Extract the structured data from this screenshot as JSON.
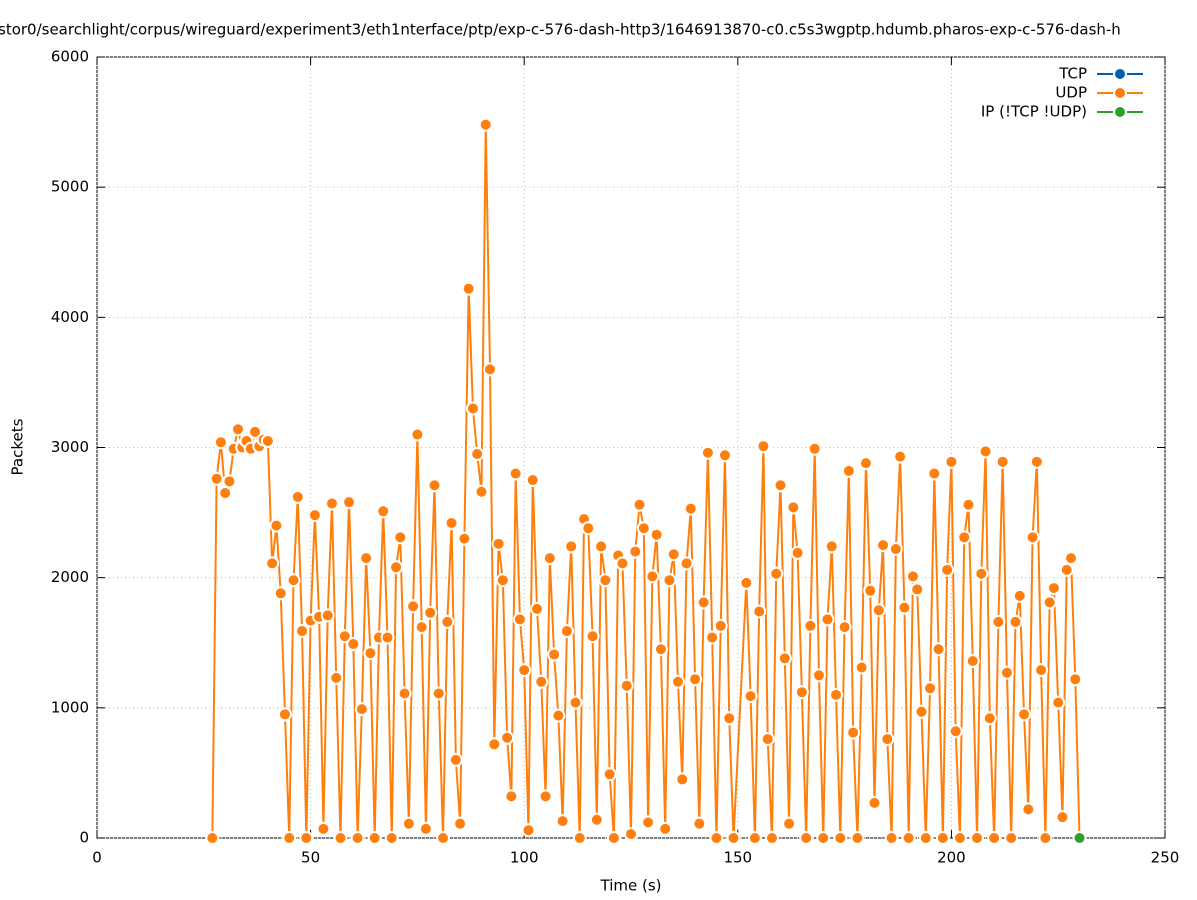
{
  "chart_data": {
    "type": "line",
    "title": "stor0/searchlight/corpus/wireguard/experiment3/eth1nterface/ptp/exp-c-576-dash-http3/1646913870-c0.c5s3wgptp.hdumb.pharos-exp-c-576-dash-h",
    "x_label": "Time (s)",
    "y_label": "Packets",
    "xlim": [
      0,
      250
    ],
    "xticks": [
      0,
      50,
      100,
      150,
      200,
      250
    ],
    "ylim": [
      0,
      6000
    ],
    "yticks": [
      0,
      1000,
      2000,
      3000,
      4000,
      5000,
      6000
    ],
    "grid": true,
    "legend": "top-right",
    "series": [
      {
        "name": "TCP",
        "color": "#0060ad",
        "x": [],
        "values": []
      },
      {
        "name": "UDP",
        "color": "#ff7f0e",
        "x": [
          27,
          28,
          29,
          30,
          31,
          32,
          33,
          34,
          35,
          36,
          37,
          38,
          39,
          40,
          41,
          42,
          43,
          44,
          45,
          46,
          47,
          48,
          49,
          50,
          51,
          52,
          53,
          54,
          55,
          56,
          57,
          58,
          59,
          60,
          61,
          62,
          63,
          64,
          65,
          66,
          67,
          68,
          69,
          70,
          71,
          72,
          73,
          74,
          75,
          76,
          77,
          78,
          79,
          80,
          81,
          82,
          83,
          84,
          85,
          86,
          87,
          88,
          89,
          90,
          91,
          92,
          93,
          94,
          95,
          96,
          97,
          98,
          99,
          100,
          101,
          102,
          103,
          104,
          105,
          106,
          107,
          108,
          109,
          110,
          111,
          112,
          113,
          114,
          115,
          116,
          117,
          118,
          119,
          120,
          121,
          122,
          123,
          124,
          125,
          126,
          127,
          128,
          129,
          130,
          131,
          132,
          133,
          134,
          135,
          136,
          137,
          138,
          139,
          140,
          141,
          142,
          143,
          144,
          145,
          146,
          147,
          148,
          149,
          152,
          153,
          154,
          155,
          156,
          157,
          158,
          159,
          160,
          161,
          162,
          163,
          164,
          165,
          166,
          167,
          168,
          169,
          170,
          171,
          172,
          173,
          174,
          175,
          176,
          177,
          178,
          179,
          180,
          181,
          182,
          183,
          184,
          185,
          186,
          187,
          188,
          189,
          190,
          191,
          192,
          193,
          194,
          195,
          196,
          197,
          198,
          199,
          200,
          201,
          202,
          203,
          204,
          205,
          206,
          207,
          208,
          209,
          210,
          211,
          212,
          213,
          214,
          215,
          216,
          217,
          218,
          219,
          220,
          221,
          222,
          223,
          224,
          225,
          226,
          227,
          228,
          229,
          230
        ],
        "values": [
          0,
          2760,
          3040,
          2650,
          2740,
          2990,
          3140,
          3000,
          3050,
          2990,
          3120,
          3010,
          3060,
          3050,
          2110,
          2400,
          1880,
          950,
          0,
          1980,
          2620,
          1590,
          0,
          1670,
          2480,
          1700,
          70,
          1710,
          2570,
          1230,
          0,
          1550,
          2580,
          1490,
          0,
          990,
          2150,
          1420,
          0,
          1540,
          2510,
          1540,
          0,
          2080,
          2310,
          1110,
          110,
          1780,
          3100,
          1620,
          70,
          1730,
          2710,
          1110,
          0,
          1660,
          2420,
          600,
          110,
          2300,
          4220,
          3300,
          2950,
          2660,
          5480,
          3600,
          720,
          2260,
          1980,
          770,
          320,
          2800,
          1680,
          1290,
          60,
          2750,
          1760,
          1200,
          320,
          2150,
          1410,
          940,
          130,
          1590,
          2240,
          1040,
          0,
          2450,
          2380,
          1550,
          140,
          2240,
          1980,
          490,
          0,
          2170,
          2110,
          1170,
          30,
          2200,
          2560,
          2380,
          120,
          2010,
          2330,
          1450,
          70,
          1980,
          2180,
          1200,
          450,
          2110,
          2530,
          1220,
          110,
          1810,
          2960,
          1540,
          0,
          1630,
          2940,
          920,
          0,
          1960,
          1090,
          0,
          1740,
          3010,
          760,
          0,
          2030,
          2710,
          1380,
          110,
          2540,
          2190,
          1120,
          0,
          1630,
          2990,
          1250,
          0,
          1680,
          2240,
          1100,
          0,
          1620,
          2820,
          810,
          0,
          1310,
          2880,
          1900,
          270,
          1750,
          2250,
          760,
          0,
          2220,
          2930,
          1770,
          0,
          2010,
          1910,
          970,
          0,
          1150,
          2800,
          1450,
          0,
          2060,
          2890,
          820,
          0,
          2310,
          2560,
          1360,
          0,
          2030,
          2970,
          920,
          0,
          1660,
          2890,
          1270,
          0,
          1660,
          1860,
          950,
          220,
          2310,
          2890,
          1290,
          0,
          1810,
          1920,
          1040,
          160,
          2060,
          2150,
          1220,
          0
        ]
      },
      {
        "name": "IP (!TCP  !UDP)",
        "color": "#2ca02c",
        "x": [
          230
        ],
        "values": [
          0
        ]
      }
    ]
  }
}
